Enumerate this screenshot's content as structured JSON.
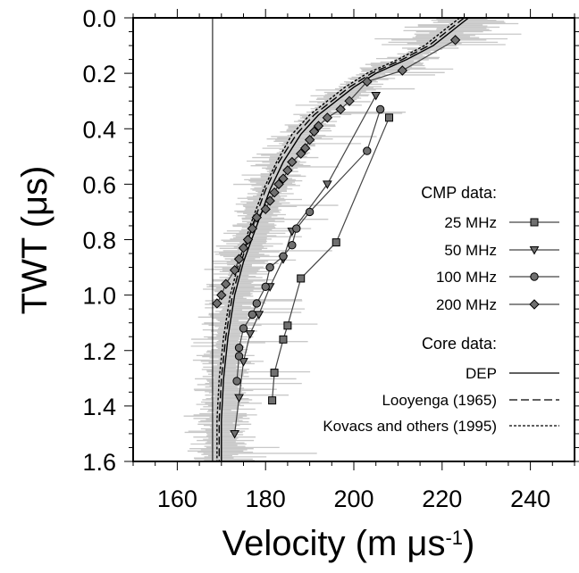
{
  "chart_data": {
    "type": "line",
    "xlabel_main": "Velocity (m μs",
    "xlabel_sup": "-1",
    "xlabel_close": ")",
    "ylabel": "TWT (μs)",
    "xlim": [
      150,
      250
    ],
    "ylim": [
      1.6,
      0.0
    ],
    "y_inverted": true,
    "x_ticks": [
      160,
      180,
      200,
      220,
      240
    ],
    "x_tick_labels": [
      "160",
      "180",
      "200",
      "220",
      "240"
    ],
    "y_ticks": [
      0.0,
      0.2,
      0.4,
      0.6,
      0.8,
      1.0,
      1.2,
      1.4,
      1.6
    ],
    "y_tick_labels": [
      "0.0",
      "0.2",
      "0.4",
      "0.6",
      "0.8",
      "1.0",
      "1.2",
      "1.4",
      "1.6"
    ],
    "vertical_line_x": 168,
    "legend": {
      "cmp_title": "CMP data:",
      "core_title": "Core data:",
      "cmp_entries": [
        "25 MHz",
        "50 MHz",
        "100 MHz",
        "200 MHz"
      ],
      "core_entries": [
        "DEP",
        "Looyenga (1965)",
        "Kovacs and others (1995)"
      ]
    },
    "series": [
      {
        "name": "25 MHz",
        "marker": "square",
        "x": [
          208,
          196,
          188,
          185,
          184,
          182,
          181.5
        ],
        "y": [
          0.36,
          0.81,
          0.94,
          1.11,
          1.16,
          1.28,
          1.38
        ]
      },
      {
        "name": "50 MHz",
        "marker": "triangle",
        "x": [
          205,
          194,
          186,
          184,
          181,
          178.5,
          176.5,
          175,
          174,
          173
        ],
        "y": [
          0.28,
          0.6,
          0.77,
          0.87,
          0.97,
          1.07,
          1.14,
          1.24,
          1.37,
          1.5
        ]
      },
      {
        "name": "100 MHz",
        "marker": "circle",
        "x": [
          206,
          203,
          190,
          187,
          186,
          184,
          181,
          180,
          178,
          177,
          175,
          174,
          174,
          173.5
        ],
        "y": [
          0.33,
          0.48,
          0.7,
          0.76,
          0.82,
          0.86,
          0.9,
          0.97,
          1.03,
          1.07,
          1.12,
          1.19,
          1.22,
          1.31
        ]
      },
      {
        "name": "200 MHz",
        "marker": "diamond",
        "x": [
          223,
          211,
          203,
          199,
          197,
          194,
          192,
          191,
          190,
          189,
          188,
          186,
          185,
          184,
          183,
          182,
          181,
          180,
          178,
          177,
          176,
          175,
          174,
          173,
          171,
          170,
          169
        ],
        "y": [
          0.08,
          0.19,
          0.23,
          0.3,
          0.33,
          0.36,
          0.39,
          0.41,
          0.44,
          0.47,
          0.49,
          0.52,
          0.55,
          0.58,
          0.6,
          0.63,
          0.66,
          0.69,
          0.72,
          0.76,
          0.8,
          0.83,
          0.87,
          0.91,
          0.96,
          1.0,
          1.03
        ]
      },
      {
        "name": "DEP",
        "style": "solid",
        "x": [
          226,
          222,
          218,
          212,
          205,
          200,
          196,
          192,
          188,
          184,
          181,
          178,
          175,
          173,
          171.5,
          170.5,
          170,
          170,
          170
        ],
        "y": [
          0.0,
          0.05,
          0.1,
          0.15,
          0.2,
          0.25,
          0.3,
          0.35,
          0.42,
          0.52,
          0.62,
          0.75,
          0.88,
          1.0,
          1.15,
          1.3,
          1.45,
          1.55,
          1.6
        ]
      },
      {
        "name": "Looyenga (1965)",
        "style": "dashed",
        "x": [
          225,
          221,
          217,
          211,
          204,
          199,
          195,
          191,
          187,
          183,
          180,
          177,
          174.5,
          172.5,
          171,
          170,
          169.5,
          169.5,
          169.5
        ],
        "y": [
          0.0,
          0.05,
          0.1,
          0.15,
          0.2,
          0.25,
          0.3,
          0.35,
          0.42,
          0.52,
          0.62,
          0.75,
          0.88,
          1.0,
          1.15,
          1.3,
          1.45,
          1.55,
          1.6
        ]
      },
      {
        "name": "Kovacs and others (1995)",
        "style": "dotted",
        "x": [
          224,
          220,
          216,
          210,
          203,
          198,
          194,
          190,
          186,
          182.5,
          179.5,
          176.5,
          174,
          172,
          170.5,
          169.5,
          169,
          169,
          169
        ],
        "y": [
          0.0,
          0.05,
          0.1,
          0.15,
          0.2,
          0.25,
          0.3,
          0.35,
          0.42,
          0.52,
          0.62,
          0.75,
          0.88,
          1.0,
          1.15,
          1.3,
          1.45,
          1.55,
          1.6
        ]
      }
    ],
    "gray_band_color": "#c8c8c8"
  }
}
